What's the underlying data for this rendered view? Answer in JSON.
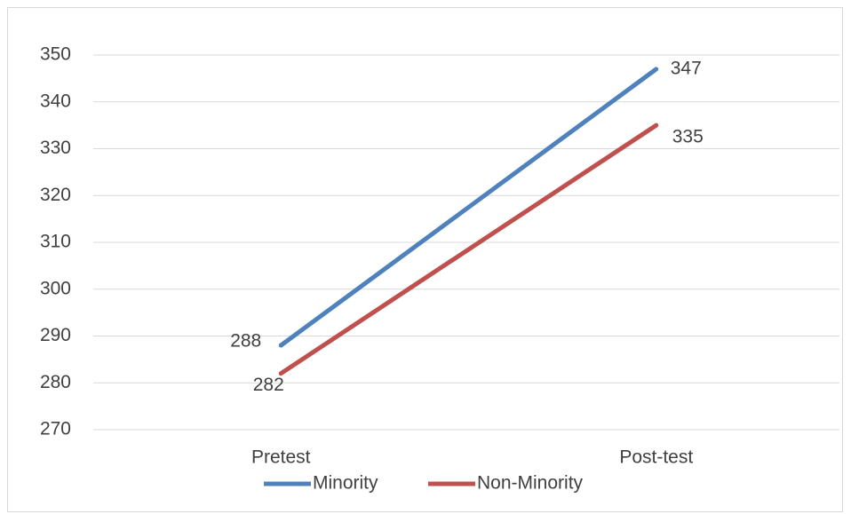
{
  "chart_data": {
    "type": "line",
    "categories": [
      "Pretest",
      "Post-test"
    ],
    "series": [
      {
        "name": "Minority",
        "color": "#4f81bd",
        "values": [
          288,
          347
        ]
      },
      {
        "name": "Non-Minority",
        "color": "#c0504d",
        "values": [
          282,
          335
        ]
      }
    ],
    "ylim": [
      270,
      350
    ],
    "yticks": [
      270,
      280,
      290,
      300,
      310,
      320,
      330,
      340,
      350
    ],
    "grid": true,
    "legend": "bottom",
    "data_labels": true
  }
}
